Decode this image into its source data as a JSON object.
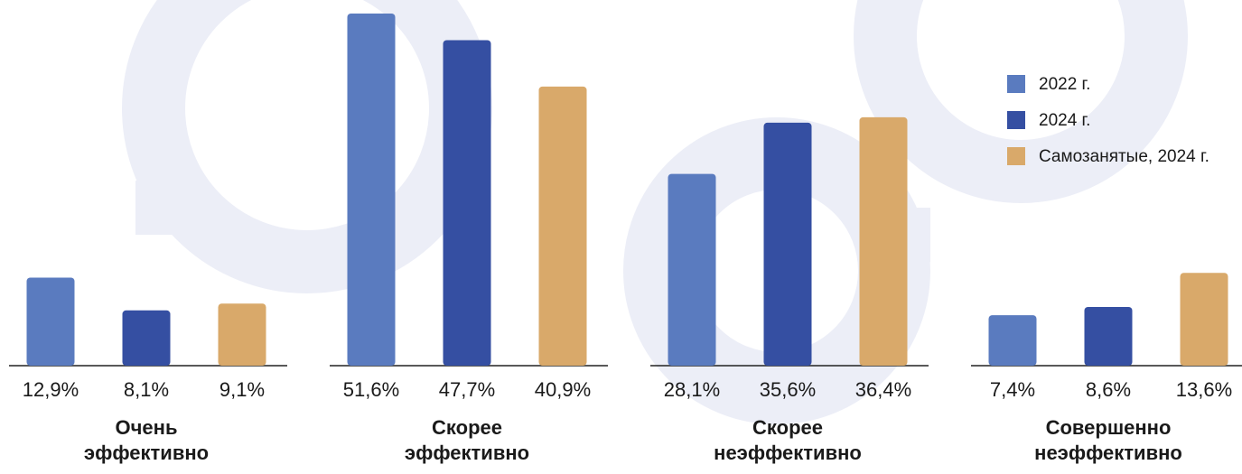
{
  "chart_data": {
    "type": "bar",
    "categories": [
      [
        "Очень",
        "эффективно"
      ],
      [
        "Скорее",
        "эффективно"
      ],
      [
        "Скорее",
        "неэффективно"
      ],
      [
        "Совершенно",
        "неэффективно"
      ]
    ],
    "series": [
      {
        "name": "2022 г.",
        "color": "#5a7bbf",
        "values": [
          12.9,
          51.6,
          28.1,
          7.4
        ],
        "value_labels": [
          "12,9%",
          "51,6%",
          "28,1%",
          "7,4%"
        ]
      },
      {
        "name": "2024 г.",
        "color": "#354fa2",
        "values": [
          8.1,
          47.7,
          35.6,
          8.6
        ],
        "value_labels": [
          "8,1%",
          "47,7%",
          "35,6%",
          "8,6%"
        ]
      },
      {
        "name": "Самозанятые, 2024 г.",
        "color": "#d9a96a",
        "values": [
          9.1,
          40.9,
          36.4,
          13.6
        ],
        "value_labels": [
          "9,1%",
          "40,9%",
          "36,4%",
          "13,6%"
        ]
      }
    ],
    "legend": "top-right"
  }
}
